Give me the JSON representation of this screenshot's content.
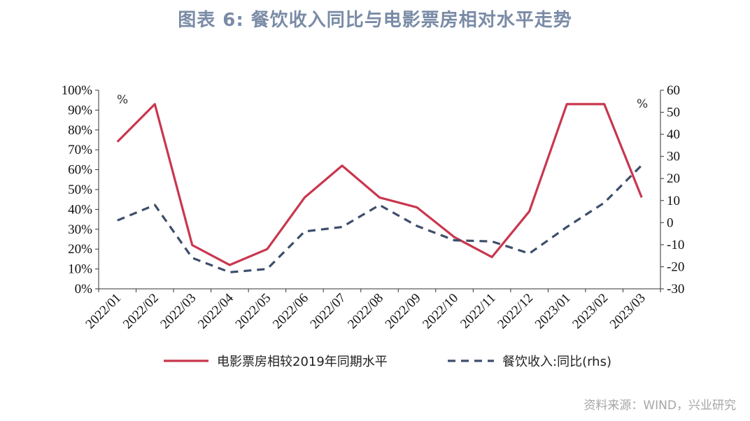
{
  "title": "图表 6:  餐饮收入同比与电影票房相对水平走势",
  "source": "资料来源：WIND，兴业研究",
  "chart_data": {
    "type": "line",
    "x": [
      "2022/01",
      "2022/02",
      "2022/03",
      "2022/04",
      "2022/05",
      "2022/06",
      "2022/07",
      "2022/08",
      "2022/09",
      "2022/10",
      "2022/11",
      "2022/12",
      "2023/01",
      "2023/02",
      "2023/03"
    ],
    "left_axis": {
      "unit_label": "%",
      "ylim": [
        0,
        100
      ],
      "ticks": [
        "0%",
        "10%",
        "20%",
        "30%",
        "40%",
        "50%",
        "60%",
        "70%",
        "80%",
        "90%",
        "100%"
      ]
    },
    "right_axis": {
      "unit_label": "%",
      "ylim": [
        -30,
        60
      ],
      "ticks": [
        "-30",
        "-20",
        "-10",
        "0",
        "10",
        "20",
        "30",
        "40",
        "50",
        "60"
      ]
    },
    "series": [
      {
        "name": "电影票房相较2019年同期水平",
        "axis": "left",
        "style": "solid",
        "color": "#c8374e",
        "values": [
          74,
          93,
          22,
          12,
          20,
          46,
          62,
          46,
          41,
          26,
          16,
          39,
          93,
          93,
          46
        ]
      },
      {
        "name": "餐饮收入:同比(rhs)",
        "axis": "right",
        "style": "dashed",
        "color": "#3d4e6b",
        "values": [
          1,
          8,
          -16,
          -22.5,
          -21,
          -4,
          -2,
          8,
          -1.5,
          -8,
          -8.5,
          -14,
          -2,
          9,
          26
        ]
      }
    ],
    "grid": false,
    "legend_position": "bottom"
  }
}
